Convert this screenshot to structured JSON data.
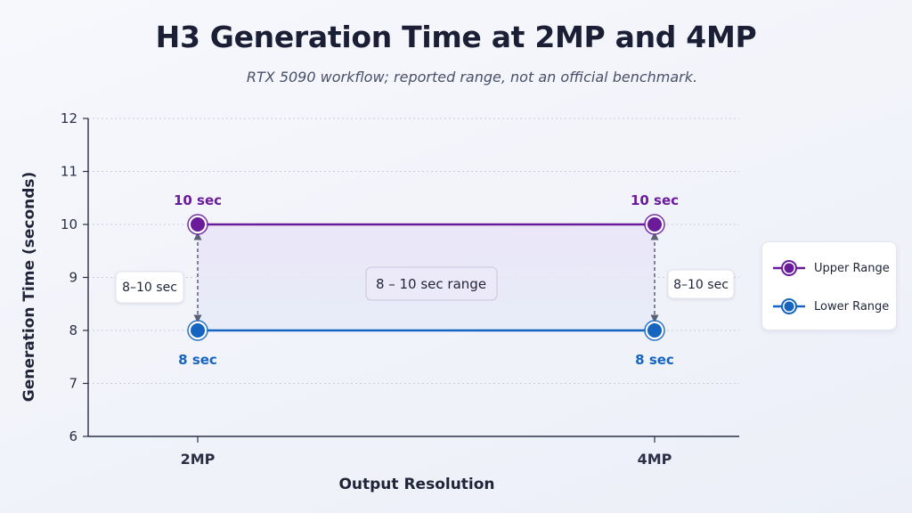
{
  "chart_data": {
    "type": "line",
    "title": "H3 Generation Time at 2MP and 4MP",
    "subtitle": "RTX 5090 workflow; reported range, not an official benchmark.",
    "xlabel": "Output Resolution",
    "ylabel": "Generation Time (seconds)",
    "categories": [
      "2MP",
      "4MP"
    ],
    "ylim": [
      6,
      12
    ],
    "yticks": [
      6,
      7,
      8,
      9,
      10,
      11,
      12
    ],
    "grid": true,
    "legend_position": "right",
    "series": [
      {
        "name": "Upper Range",
        "values": [
          10,
          10
        ],
        "color": "#6a1b9a",
        "labels": [
          "10 sec",
          "10 sec"
        ]
      },
      {
        "name": "Lower Range",
        "values": [
          8,
          8
        ],
        "color": "#1565c0",
        "labels": [
          "8 sec",
          "8 sec"
        ]
      }
    ],
    "annotations": {
      "range_left": "8–10 sec",
      "range_right": "8–10 sec",
      "range_center": "8 – 10 sec range"
    }
  }
}
